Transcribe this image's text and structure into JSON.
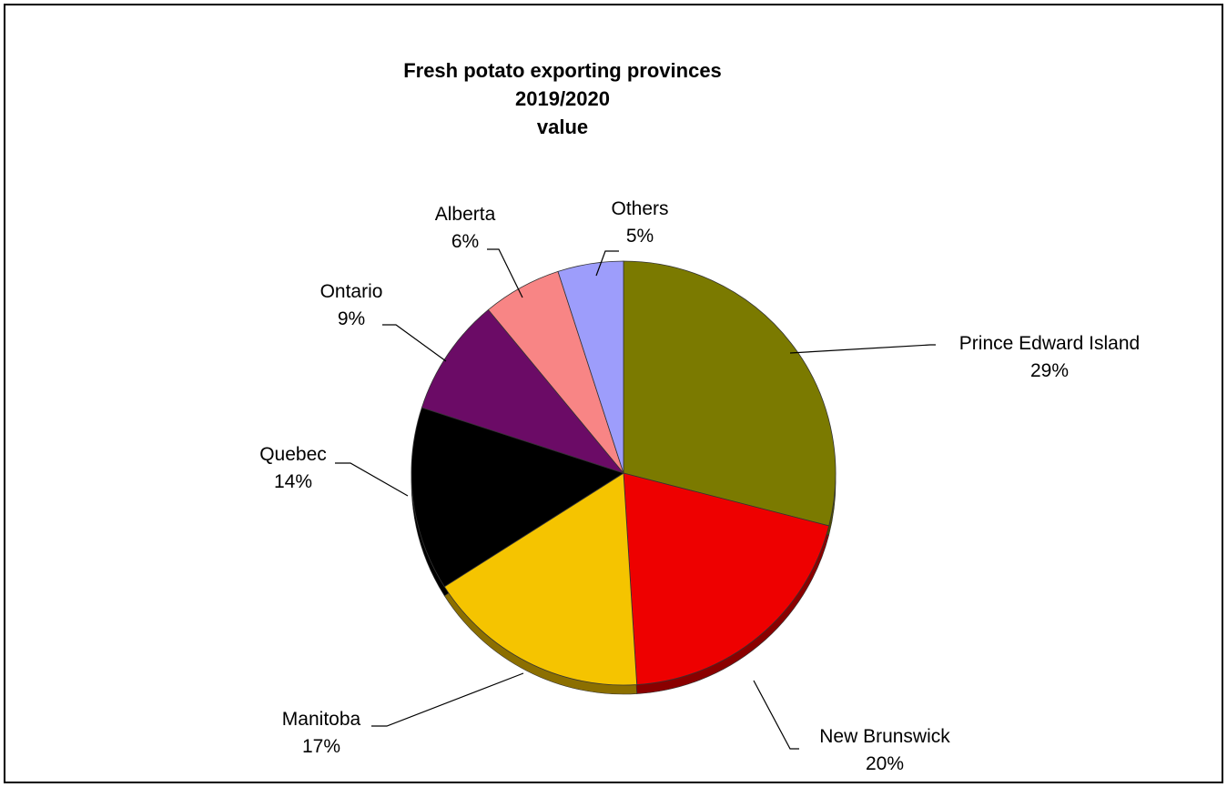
{
  "chart_data": {
    "type": "pie",
    "title_lines": [
      "Fresh potato exporting provinces",
      "2019/2020",
      "value"
    ],
    "slices": [
      {
        "label": "Prince Edward Island",
        "value": 29,
        "percent_label": "29%",
        "color": "#7b7a00",
        "shadow": "#4e4d00"
      },
      {
        "label": "New Brunswick",
        "value": 20,
        "percent_label": "20%",
        "color": "#ee0000",
        "shadow": "#8a0000"
      },
      {
        "label": "Manitoba",
        "value": 17,
        "percent_label": "17%",
        "color": "#f5c400",
        "shadow": "#8c6f00"
      },
      {
        "label": "Quebec",
        "value": 14,
        "percent_label": "14%",
        "color": "#000000",
        "shadow": "#000000"
      },
      {
        "label": "Ontario",
        "value": 9,
        "percent_label": "9%",
        "color": "#6b0b66",
        "shadow": "#3f063c"
      },
      {
        "label": "Alberta",
        "value": 6,
        "percent_label": "6%",
        "color": "#f88585",
        "shadow": "#a45555"
      },
      {
        "label": "Others",
        "value": 5,
        "percent_label": "5%",
        "color": "#9d9dfb",
        "shadow": "#5f5fa8"
      }
    ],
    "legend": "none",
    "data_labels": "outside with leader lines"
  }
}
